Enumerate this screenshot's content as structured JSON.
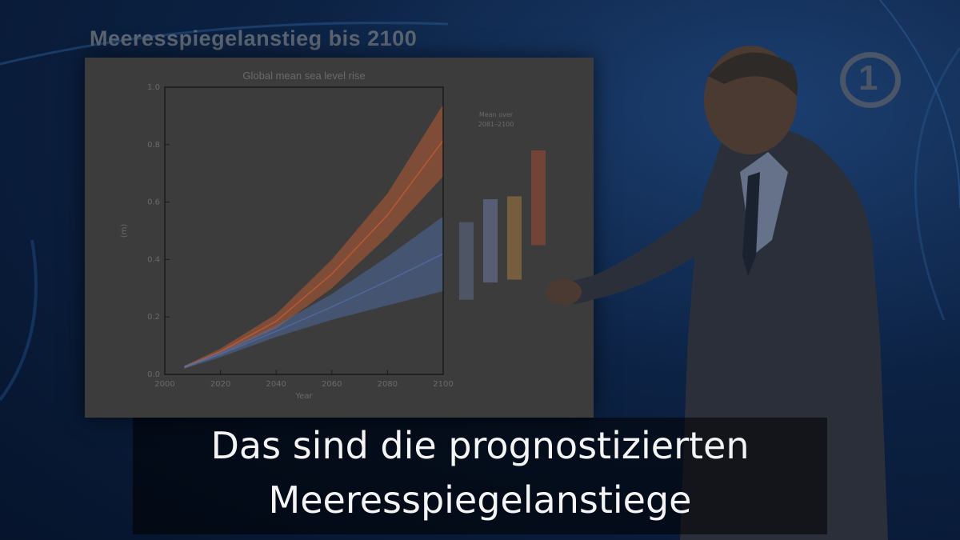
{
  "slide": {
    "title": "Meeresspiegelanstieg bis 2100"
  },
  "chart_data": {
    "type": "area",
    "title": "Global mean sea level rise",
    "xlabel": "Year",
    "ylabel": "(m)",
    "xlim": [
      2000,
      2100
    ],
    "ylim": [
      0.0,
      1.0
    ],
    "x_ticks": [
      "2000",
      "2020",
      "2040",
      "2060",
      "2080",
      "2100"
    ],
    "y_ticks": [
      "0.0",
      "0.2",
      "0.4",
      "0.6",
      "0.8",
      "1.0"
    ],
    "x": [
      2007,
      2020,
      2040,
      2060,
      2080,
      2100
    ],
    "series": [
      {
        "color": "#d06030",
        "lower": [
          0.02,
          0.07,
          0.16,
          0.3,
          0.48,
          0.69
        ],
        "upper": [
          0.03,
          0.09,
          0.21,
          0.4,
          0.63,
          0.94
        ]
      },
      {
        "color": "#5070b0",
        "lower": [
          0.02,
          0.06,
          0.13,
          0.19,
          0.24,
          0.29
        ],
        "upper": [
          0.03,
          0.08,
          0.17,
          0.28,
          0.41,
          0.55
        ]
      }
    ],
    "legend_title": [
      "Mean over",
      "2081–2100"
    ],
    "bars": [
      {
        "color": "#6a7aa0",
        "low": 0.26,
        "high": 0.53
      },
      {
        "color": "#8090c8",
        "low": 0.32,
        "high": 0.61
      },
      {
        "color": "#c89040",
        "low": 0.33,
        "high": 0.62
      },
      {
        "color": "#c05030",
        "low": 0.45,
        "high": 0.78
      }
    ],
    "grid": false
  },
  "broadcaster": {
    "logo": "1"
  },
  "subtitle": {
    "line1": "Das sind die prognostizierten",
    "line2": "Meeresspiegelanstiege"
  }
}
